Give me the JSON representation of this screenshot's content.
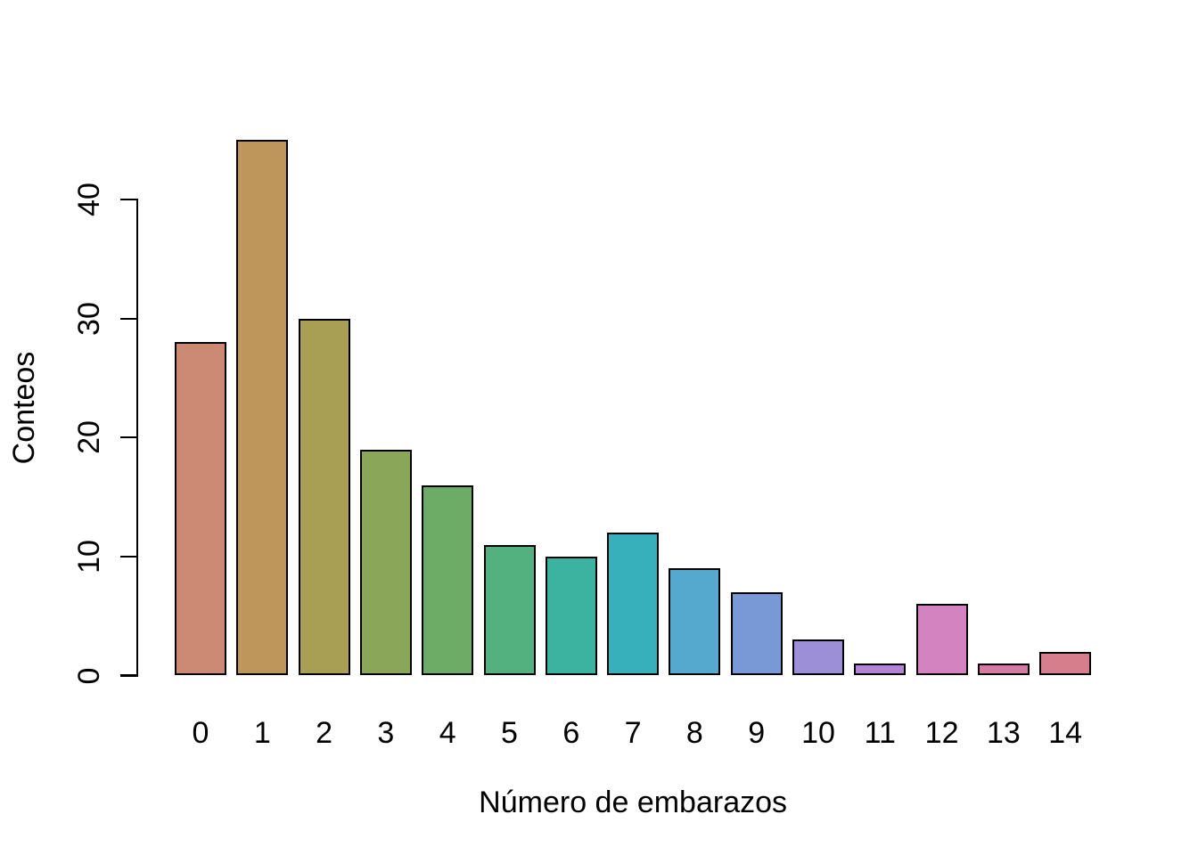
{
  "chart_data": {
    "type": "bar",
    "title": "",
    "xlabel": "Número de embarazos",
    "ylabel": "Conteos",
    "categories": [
      "0",
      "1",
      "2",
      "3",
      "4",
      "5",
      "6",
      "7",
      "8",
      "9",
      "10",
      "11",
      "12",
      "13",
      "14"
    ],
    "values": [
      28,
      45,
      30,
      19,
      16,
      11,
      10,
      12,
      9,
      7,
      3,
      1,
      6,
      1,
      2
    ],
    "bar_colors": [
      "#CD8A72",
      "#BE965C",
      "#A89E54",
      "#8AA658",
      "#6CAC66",
      "#52B17F",
      "#3AB3A0",
      "#37B0BC",
      "#55A8CE",
      "#7899D6",
      "#9D8ED8",
      "#B283D7",
      "#D383BF",
      "#D67AA3",
      "#D67E8B"
    ],
    "bar_border_color": "#000000",
    "axis_color": "#000000",
    "background_color": "#ffffff",
    "y_ticks": [
      0,
      10,
      20,
      30,
      40
    ],
    "ylim": [
      0,
      45
    ],
    "grid": false,
    "legend": null
  }
}
